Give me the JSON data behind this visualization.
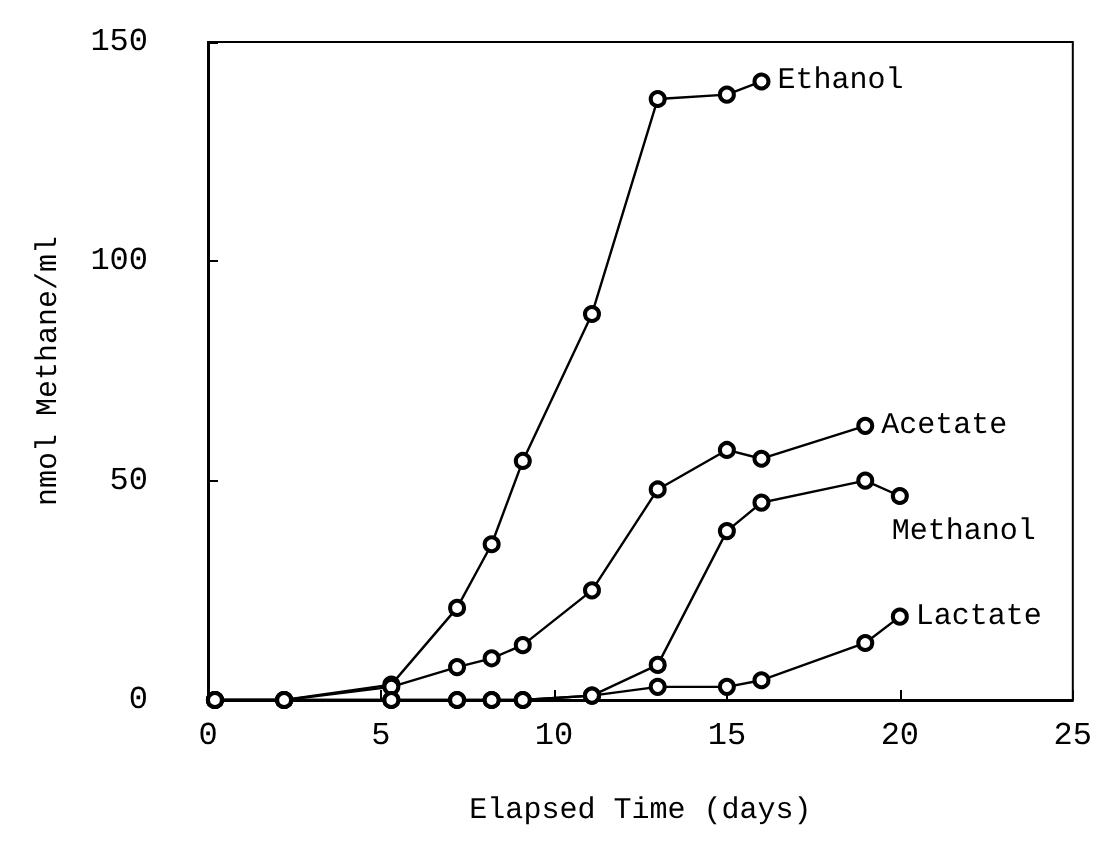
{
  "chart_data": {
    "type": "line",
    "xlabel": "Elapsed Time (days)",
    "ylabel": "nmol Methane/ml",
    "xlim": [
      0,
      25
    ],
    "xticks": [
      0,
      5,
      10,
      15,
      20,
      25
    ],
    "ylim": [
      0,
      150
    ],
    "yticks": [
      0,
      50,
      100,
      150
    ],
    "grid": false,
    "legend": false,
    "marker": "circle",
    "line_style": "solid",
    "series": [
      {
        "name": "Ethanol",
        "color": "#000000",
        "x": [
          0.2,
          2.2,
          5.3,
          7.2,
          8.2,
          9.1,
          11.1,
          13,
          15,
          16
        ],
        "values": [
          0,
          0,
          3.5,
          21,
          35.5,
          54.5,
          88,
          137,
          138,
          141
        ]
      },
      {
        "name": "Acetate",
        "color": "#000000",
        "x": [
          0.2,
          2.2,
          5.3,
          7.2,
          8.2,
          9.1,
          11.1,
          13,
          15,
          16,
          19
        ],
        "values": [
          0,
          0,
          3,
          7.5,
          9.5,
          12.5,
          25,
          48,
          57,
          55,
          62.5
        ]
      },
      {
        "name": "Methanol",
        "color": "#000000",
        "x": [
          0.2,
          2.2,
          5.3,
          7.2,
          8.2,
          9.1,
          11.1,
          13,
          15,
          16,
          19,
          20
        ],
        "values": [
          0,
          0,
          0,
          0,
          0,
          0,
          1,
          8,
          38.5,
          45,
          50,
          46.5
        ]
      },
      {
        "name": "Lactate",
        "color": "#000000",
        "x": [
          0.2,
          2.2,
          5.3,
          7.2,
          8.2,
          9.1,
          11.1,
          13,
          15,
          16,
          19,
          20
        ],
        "values": [
          0,
          0,
          0,
          0,
          0,
          0,
          1,
          3,
          3,
          4.5,
          13,
          19
        ]
      }
    ]
  }
}
